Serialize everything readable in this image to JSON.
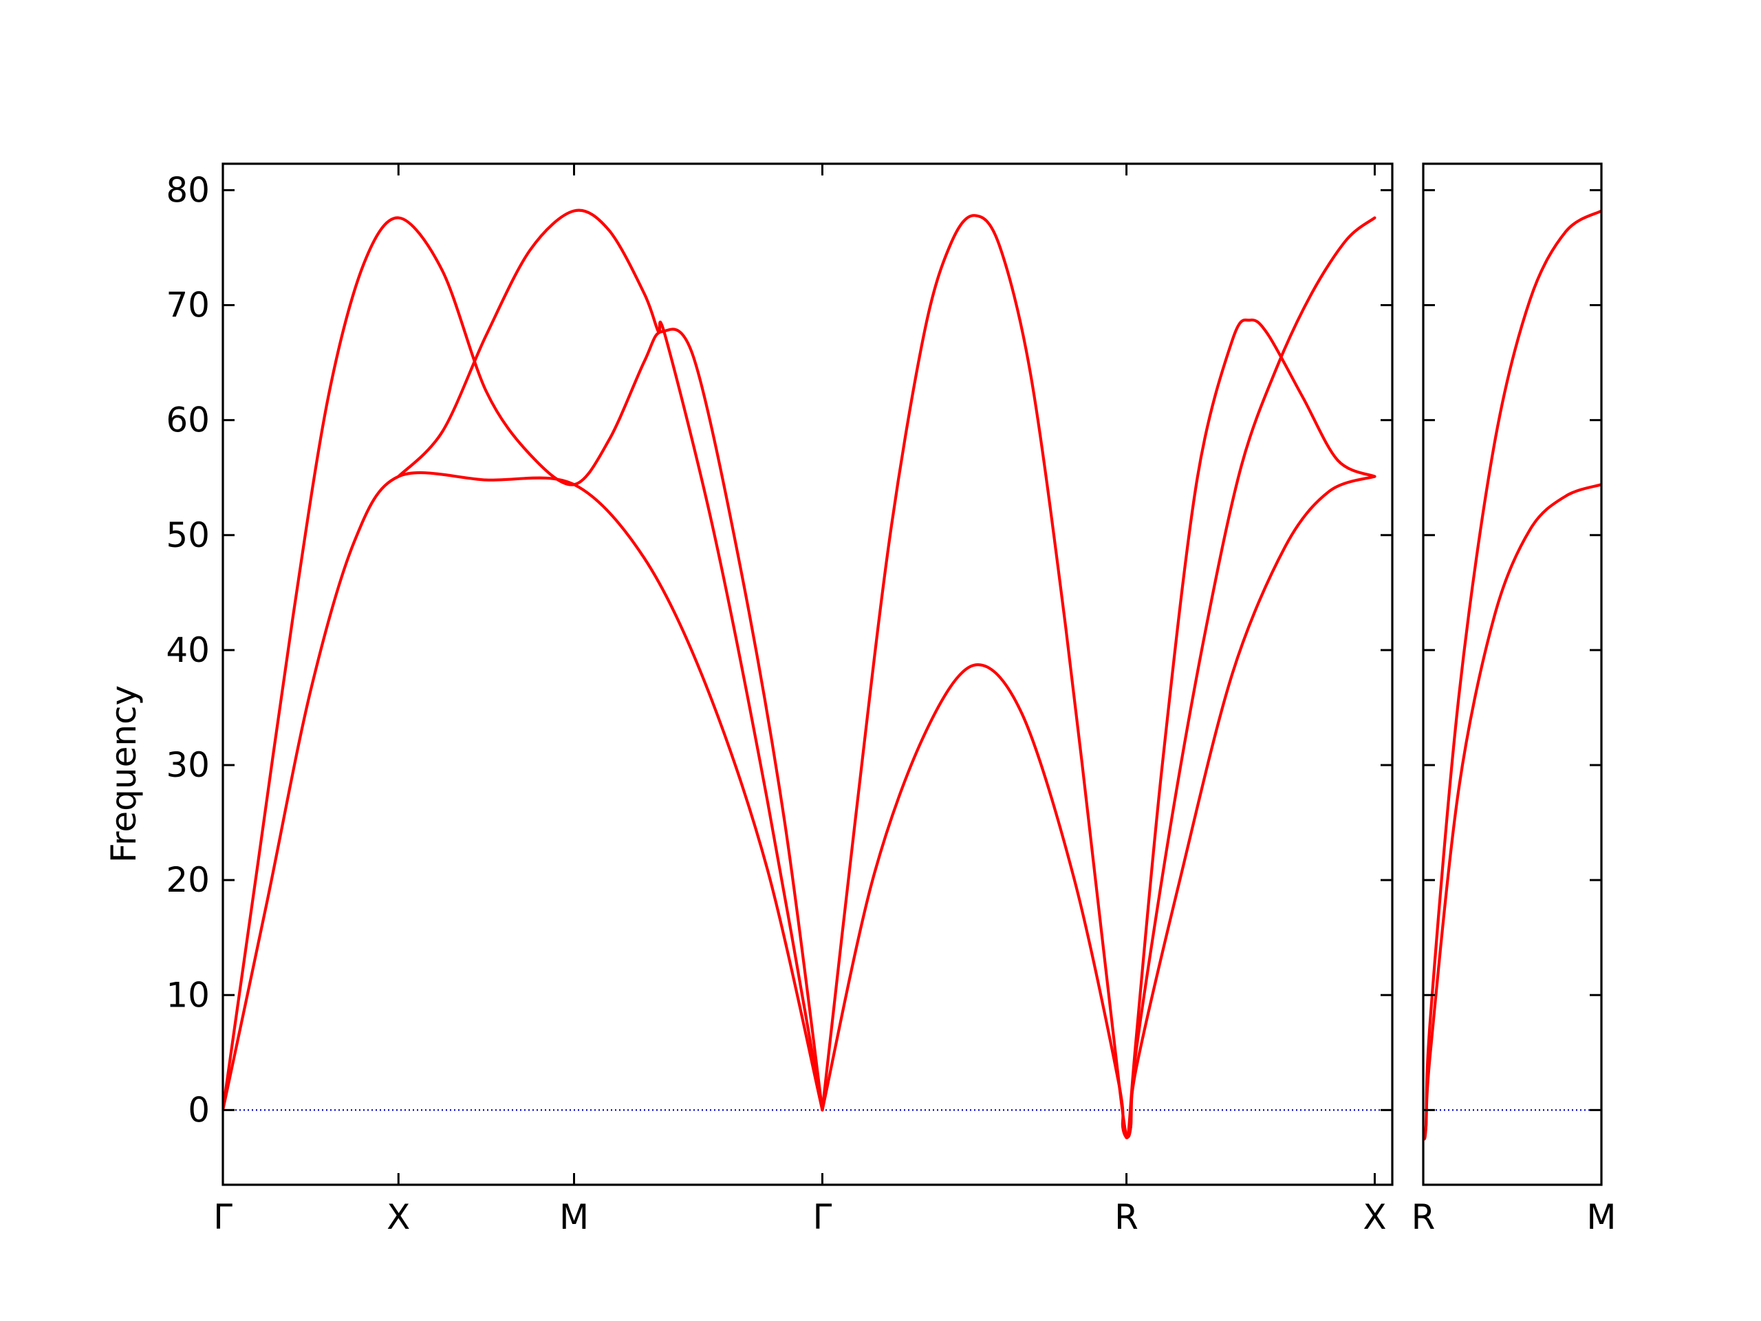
{
  "chart_data": {
    "type": "line",
    "ylabel": "Frequency",
    "ylim": [
      -6.5,
      82.3
    ],
    "y_ticks": [
      0,
      10,
      20,
      30,
      40,
      50,
      60,
      70,
      80
    ],
    "zero_line": {
      "y": 0,
      "color": "#0000cc",
      "style": "dotted"
    },
    "band_color": "#ff0000",
    "panels": [
      {
        "x_range": [
          0,
          6.66
        ],
        "x_ticks": [
          {
            "x": 0,
            "label": "Γ"
          },
          {
            "x": 1,
            "label": "X"
          },
          {
            "x": 2,
            "label": "M"
          },
          {
            "x": 3.414,
            "label": "Γ"
          },
          {
            "x": 5.146,
            "label": "R"
          },
          {
            "x": 6.56,
            "label": "X"
          }
        ],
        "series": [
          {
            "points": [
              [
                0,
                0
              ],
              [
                0.25,
                18
              ],
              [
                0.5,
                36.5
              ],
              [
                0.75,
                49.5
              ],
              [
                1,
                55.1
              ],
              [
                1.5,
                54.8
              ],
              [
                2,
                54.4
              ],
              [
                2.4,
                48
              ],
              [
                2.75,
                37
              ],
              [
                3.1,
                21
              ],
              [
                3.414,
                0
              ]
            ]
          },
          {
            "points": [
              [
                0,
                0
              ],
              [
                0.2,
                21.5
              ],
              [
                0.4,
                43
              ],
              [
                0.6,
                62
              ],
              [
                0.8,
                73.5
              ],
              [
                1,
                77.6
              ],
              [
                1.25,
                73
              ],
              [
                1.5,
                62.5
              ],
              [
                1.75,
                57
              ],
              [
                2,
                54.4
              ],
              [
                2.2,
                58.3
              ],
              [
                2.4,
                65.1
              ],
              [
                2.5,
                67.7
              ],
              [
                2.68,
                65.5
              ],
              [
                2.95,
                47
              ],
              [
                3.2,
                25
              ],
              [
                3.414,
                0
              ]
            ]
          },
          {
            "points": [
              [
                1,
                55.1
              ],
              [
                1.25,
                59
              ],
              [
                1.5,
                67.4
              ],
              [
                1.75,
                74.8
              ],
              [
                2,
                78.2
              ],
              [
                2.2,
                76.5
              ],
              [
                2.4,
                71
              ],
              [
                2.48,
                67.7
              ],
              [
                2.52,
                67.3
              ],
              [
                2.8,
                50
              ],
              [
                3.1,
                27
              ],
              [
                3.414,
                0
              ]
            ]
          },
          {
            "points": [
              [
                3.414,
                0
              ],
              [
                3.7,
                20
              ],
              [
                4.0,
                32.8
              ],
              [
                4.28,
                38.7
              ],
              [
                4.55,
                34.5
              ],
              [
                4.85,
                20
              ],
              [
                5.1,
                2.5
              ],
              [
                5.125,
                -1.5
              ],
              [
                5.146,
                -2.4
              ]
            ]
          },
          {
            "points": [
              [
                3.414,
                0
              ],
              [
                3.6,
                25
              ],
              [
                3.8,
                50
              ],
              [
                4.0,
                68
              ],
              [
                4.15,
                75.5
              ],
              [
                4.28,
                77.8
              ],
              [
                4.42,
                75.3
              ],
              [
                4.6,
                64
              ],
              [
                4.8,
                42
              ],
              [
                5.0,
                16
              ],
              [
                5.11,
                1.5
              ],
              [
                5.146,
                -2.4
              ]
            ]
          },
          {
            "points": [
              [
                5.146,
                -2.4
              ],
              [
                5.17,
                -1.5
              ],
              [
                5.2,
                3.5
              ],
              [
                5.45,
                20
              ],
              [
                5.75,
                38
              ],
              [
                6.05,
                49
              ],
              [
                6.3,
                53.8
              ],
              [
                6.56,
                55.1
              ]
            ]
          },
          {
            "points": [
              [
                5.146,
                -2.4
              ],
              [
                5.17,
                -1.5
              ],
              [
                5.2,
                5
              ],
              [
                5.4,
                25
              ],
              [
                5.6,
                42
              ],
              [
                5.8,
                56
              ],
              [
                6.0,
                64.5
              ],
              [
                6.2,
                71
              ],
              [
                6.4,
                75.7
              ],
              [
                6.56,
                77.6
              ]
            ]
          },
          {
            "points": [
              [
                5.146,
                -2.4
              ],
              [
                5.16,
                -1.5
              ],
              [
                5.2,
                6
              ],
              [
                5.35,
                30
              ],
              [
                5.55,
                55
              ],
              [
                5.75,
                67
              ],
              [
                5.85,
                68.7
              ],
              [
                5.95,
                67.5
              ],
              [
                6.15,
                62
              ],
              [
                6.35,
                56.5
              ],
              [
                6.56,
                55.1
              ]
            ]
          }
        ]
      },
      {
        "x_range": [
          0,
          1.0
        ],
        "x_ticks": [
          {
            "x": 0,
            "label": "R"
          },
          {
            "x": 1.0,
            "label": "M"
          }
        ],
        "series": [
          {
            "points": [
              [
                0,
                -2.4
              ],
              [
                0.015,
                -1.5
              ],
              [
                0.04,
                5
              ],
              [
                0.2,
                28
              ],
              [
                0.4,
                43
              ],
              [
                0.6,
                50.5
              ],
              [
                0.8,
                53.4
              ],
              [
                1.0,
                54.4
              ]
            ]
          },
          {
            "points": [
              [
                0,
                -2.4
              ],
              [
                0.015,
                -1.5
              ],
              [
                0.04,
                8
              ],
              [
                0.2,
                36
              ],
              [
                0.4,
                58
              ],
              [
                0.6,
                70.5
              ],
              [
                0.8,
                76.4
              ],
              [
                1.0,
                78.2
              ]
            ]
          }
        ]
      }
    ]
  }
}
